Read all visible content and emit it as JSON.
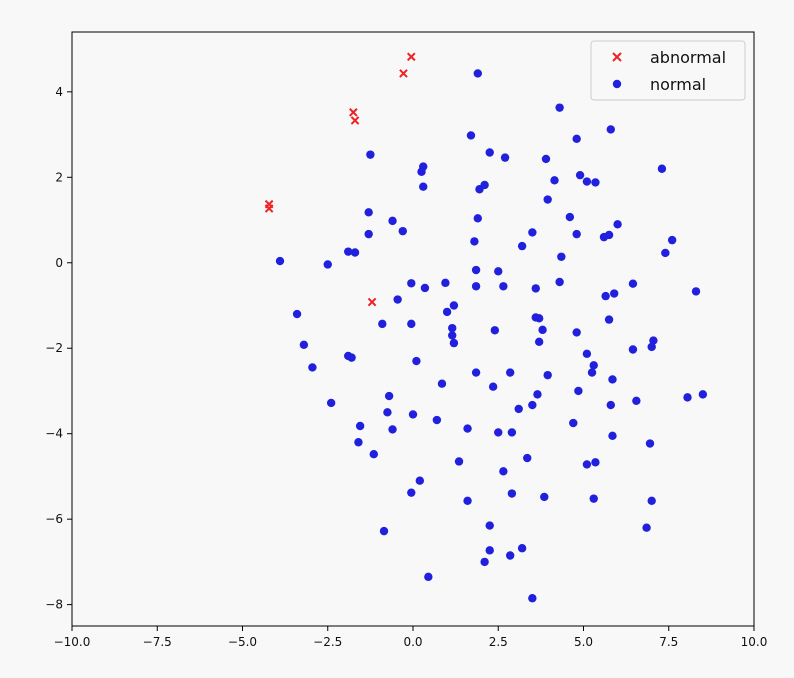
{
  "chart_data": {
    "type": "scatter",
    "xlim": [
      -10,
      10
    ],
    "ylim": [
      -8.5,
      5.4
    ],
    "x_ticks": [
      "−10.0",
      "−7.5",
      "−5.0",
      "−2.5",
      "0.0",
      "2.5",
      "5.0",
      "7.5",
      "10.0"
    ],
    "x_tick_values": [
      -10,
      -7.5,
      -5,
      -2.5,
      0,
      2.5,
      5,
      7.5,
      10
    ],
    "y_ticks": [
      "4",
      "2",
      "0",
      "−2",
      "−4",
      "−6",
      "−8"
    ],
    "y_tick_values": [
      4,
      2,
      0,
      -2,
      -4,
      -6,
      -8
    ],
    "grid": false,
    "legend": "top-right",
    "series": [
      {
        "name": "abnormal",
        "marker": "x",
        "color": "#ee2222",
        "points": [
          [
            -0.05,
            4.82
          ],
          [
            -0.28,
            4.43
          ],
          [
            -1.75,
            3.52
          ],
          [
            -1.7,
            3.33
          ],
          [
            -4.22,
            1.37
          ],
          [
            -4.22,
            1.27
          ],
          [
            -1.2,
            -0.92
          ]
        ]
      },
      {
        "name": "normal",
        "marker": "o",
        "color": "#2020dd",
        "points": [
          [
            1.9,
            4.43
          ],
          [
            4.3,
            3.63
          ],
          [
            1.7,
            2.98
          ],
          [
            5.8,
            3.12
          ],
          [
            4.8,
            2.9
          ],
          [
            -1.25,
            2.53
          ],
          [
            2.25,
            2.58
          ],
          [
            2.7,
            2.46
          ],
          [
            3.9,
            2.43
          ],
          [
            7.3,
            2.2
          ],
          [
            0.3,
            2.25
          ],
          [
            0.25,
            2.13
          ],
          [
            4.9,
            2.05
          ],
          [
            4.15,
            1.93
          ],
          [
            5.1,
            1.9
          ],
          [
            5.35,
            1.88
          ],
          [
            2.1,
            1.82
          ],
          [
            1.95,
            1.72
          ],
          [
            0.3,
            1.78
          ],
          [
            3.95,
            1.48
          ],
          [
            -1.3,
            1.18
          ],
          [
            1.9,
            1.04
          ],
          [
            4.6,
            1.07
          ],
          [
            -0.6,
            0.98
          ],
          [
            6.0,
            0.9
          ],
          [
            -0.3,
            0.74
          ],
          [
            -1.3,
            0.67
          ],
          [
            3.5,
            0.71
          ],
          [
            4.8,
            0.67
          ],
          [
            5.75,
            0.65
          ],
          [
            5.6,
            0.6
          ],
          [
            7.6,
            0.53
          ],
          [
            1.8,
            0.5
          ],
          [
            3.2,
            0.39
          ],
          [
            -1.9,
            0.26
          ],
          [
            -1.7,
            0.24
          ],
          [
            7.4,
            0.23
          ],
          [
            4.35,
            0.14
          ],
          [
            -3.9,
            0.04
          ],
          [
            -2.5,
            -0.04
          ],
          [
            1.85,
            -0.17
          ],
          [
            2.5,
            -0.2
          ],
          [
            0.95,
            -0.47
          ],
          [
            4.3,
            -0.45
          ],
          [
            -0.05,
            -0.48
          ],
          [
            6.45,
            -0.49
          ],
          [
            0.35,
            -0.59
          ],
          [
            1.85,
            -0.55
          ],
          [
            2.65,
            -0.55
          ],
          [
            3.6,
            -0.6
          ],
          [
            8.3,
            -0.67
          ],
          [
            5.9,
            -0.72
          ],
          [
            5.65,
            -0.78
          ],
          [
            -0.45,
            -0.86
          ],
          [
            1.2,
            -1.0
          ],
          [
            -3.4,
            -1.2
          ],
          [
            1.0,
            -1.15
          ],
          [
            3.6,
            -1.28
          ],
          [
            3.7,
            -1.3
          ],
          [
            5.75,
            -1.33
          ],
          [
            -0.9,
            -1.43
          ],
          [
            -0.05,
            -1.43
          ],
          [
            1.15,
            -1.53
          ],
          [
            3.8,
            -1.57
          ],
          [
            2.4,
            -1.58
          ],
          [
            4.8,
            -1.63
          ],
          [
            1.15,
            -1.7
          ],
          [
            7.05,
            -1.82
          ],
          [
            1.2,
            -1.88
          ],
          [
            3.7,
            -1.85
          ],
          [
            -3.2,
            -1.92
          ],
          [
            7.0,
            -1.97
          ],
          [
            6.45,
            -2.03
          ],
          [
            5.1,
            -2.13
          ],
          [
            -1.9,
            -2.18
          ],
          [
            -1.8,
            -2.22
          ],
          [
            0.1,
            -2.3
          ],
          [
            5.3,
            -2.4
          ],
          [
            -2.95,
            -2.45
          ],
          [
            5.25,
            -2.57
          ],
          [
            1.85,
            -2.57
          ],
          [
            2.85,
            -2.57
          ],
          [
            3.95,
            -2.63
          ],
          [
            5.85,
            -2.73
          ],
          [
            0.85,
            -2.83
          ],
          [
            2.35,
            -2.9
          ],
          [
            4.85,
            -3.0
          ],
          [
            3.65,
            -3.08
          ],
          [
            8.05,
            -3.15
          ],
          [
            8.5,
            -3.08
          ],
          [
            -0.7,
            -3.12
          ],
          [
            6.55,
            -3.23
          ],
          [
            -2.4,
            -3.28
          ],
          [
            3.5,
            -3.33
          ],
          [
            5.8,
            -3.33
          ],
          [
            3.1,
            -3.42
          ],
          [
            -0.75,
            -3.5
          ],
          [
            0.0,
            -3.55
          ],
          [
            0.7,
            -3.68
          ],
          [
            4.7,
            -3.75
          ],
          [
            -1.55,
            -3.82
          ],
          [
            1.6,
            -3.88
          ],
          [
            -0.6,
            -3.9
          ],
          [
            2.5,
            -3.97
          ],
          [
            2.9,
            -3.97
          ],
          [
            5.85,
            -4.05
          ],
          [
            -1.6,
            -4.2
          ],
          [
            6.95,
            -4.23
          ],
          [
            -1.15,
            -4.48
          ],
          [
            3.35,
            -4.57
          ],
          [
            1.35,
            -4.65
          ],
          [
            5.35,
            -4.67
          ],
          [
            5.1,
            -4.72
          ],
          [
            2.65,
            -4.88
          ],
          [
            0.2,
            -5.1
          ],
          [
            -0.05,
            -5.38
          ],
          [
            2.9,
            -5.4
          ],
          [
            3.85,
            -5.48
          ],
          [
            1.6,
            -5.57
          ],
          [
            5.3,
            -5.52
          ],
          [
            7.0,
            -5.57
          ],
          [
            2.25,
            -6.15
          ],
          [
            6.85,
            -6.2
          ],
          [
            -0.85,
            -6.28
          ],
          [
            2.25,
            -6.73
          ],
          [
            3.2,
            -6.68
          ],
          [
            2.85,
            -6.85
          ],
          [
            2.1,
            -7.0
          ],
          [
            0.45,
            -7.35
          ],
          [
            3.5,
            -7.85
          ]
        ]
      }
    ]
  }
}
